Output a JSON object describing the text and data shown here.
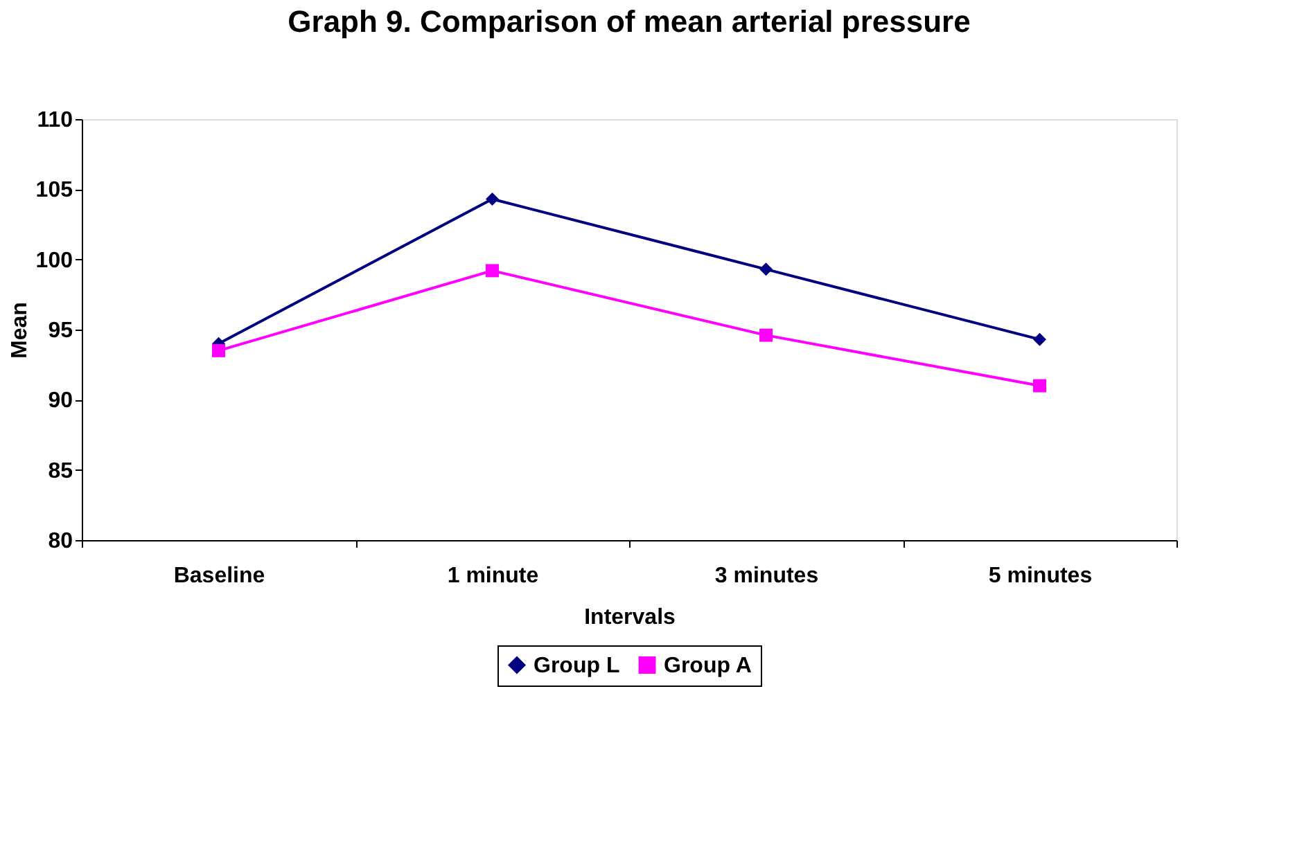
{
  "chart_data": {
    "type": "line",
    "title": "Graph 9. Comparison of mean arterial pressure",
    "xlabel": "Intervals",
    "ylabel": "Mean",
    "categories": [
      "Baseline",
      "1 minute",
      "3 minutes",
      "5 minutes"
    ],
    "series": [
      {
        "name": "Group L",
        "color": "#000080",
        "marker": "diamond",
        "values": [
          94.0,
          104.3,
          99.3,
          94.3
        ]
      },
      {
        "name": "Group A",
        "color": "#ff00ff",
        "marker": "square",
        "values": [
          93.5,
          99.2,
          94.6,
          91.0
        ]
      }
    ],
    "ylim": [
      80,
      110
    ],
    "yticks": [
      80,
      85,
      90,
      95,
      100,
      105,
      110
    ],
    "grid": false,
    "legend": "bottom",
    "line_style": "solid"
  }
}
